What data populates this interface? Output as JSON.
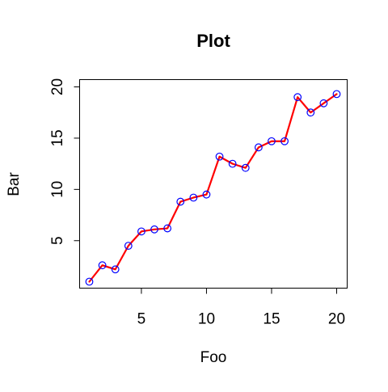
{
  "chart_data": {
    "type": "line",
    "title": "Plot",
    "xlabel": "Foo",
    "ylabel": "Bar",
    "xlim": [
      1,
      20
    ],
    "ylim": [
      1,
      20
    ],
    "x_ticks": [
      5,
      10,
      15,
      20
    ],
    "y_ticks": [
      5,
      10,
      15,
      20
    ],
    "grid": false,
    "series": [
      {
        "x": [
          1,
          2,
          3,
          4,
          5,
          6,
          7,
          8,
          9,
          10,
          11,
          12,
          13,
          14,
          15,
          16,
          17,
          18,
          19,
          20
        ],
        "values": [
          1.0,
          2.6,
          2.2,
          4.5,
          5.9,
          6.1,
          6.2,
          8.8,
          9.2,
          9.5,
          13.2,
          12.5,
          12.1,
          14.1,
          14.7,
          14.7,
          19.0,
          17.5,
          18.4,
          19.3
        ],
        "line_color": "#ff0000",
        "marker_color": "#0000ff",
        "marker": "open-circle"
      }
    ]
  }
}
